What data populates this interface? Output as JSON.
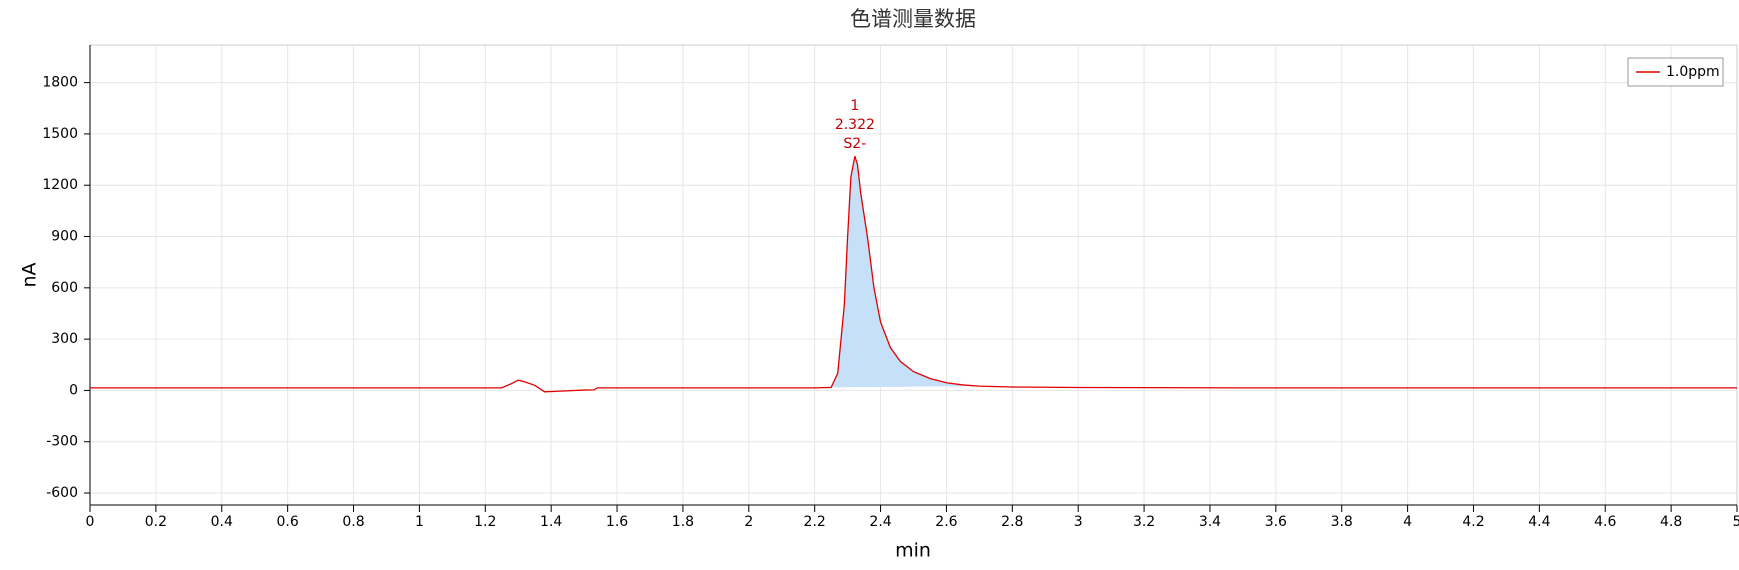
{
  "chart_data": {
    "type": "line",
    "title": "色谱测量数据",
    "x_label": "min",
    "y_label": "nA",
    "x": [
      0,
      1.25,
      1.28,
      1.3,
      1.32,
      1.35,
      1.38,
      1.42,
      1.5,
      1.53,
      1.54,
      2.2,
      2.25,
      2.27,
      2.29,
      2.3,
      2.31,
      2.322,
      2.33,
      2.34,
      2.36,
      2.38,
      2.4,
      2.43,
      2.46,
      2.5,
      2.55,
      2.6,
      2.65,
      2.7,
      2.8,
      3,
      3.5,
      4,
      5
    ],
    "series": [
      {
        "name": "1.0ppm",
        "color": "#e00000",
        "values": [
          15,
          15,
          40,
          60,
          50,
          30,
          -8,
          -5,
          2,
          3,
          15,
          15,
          18,
          100,
          500,
          900,
          1250,
          1370,
          1320,
          1150,
          900,
          600,
          400,
          250,
          170,
          110,
          70,
          45,
          32,
          25,
          20,
          17,
          15,
          15,
          15
        ]
      }
    ],
    "peak_area": {
      "start": 2.22,
      "end": 2.72,
      "color": "#c5e0f8"
    },
    "peak_label": {
      "x": 2.322,
      "y": 1370,
      "color": "#c00000",
      "lines": [
        "1",
        "2.322",
        "S2-"
      ]
    },
    "xlim": [
      0,
      5
    ],
    "ylim": [
      -670,
      2020
    ],
    "xticks": [
      0,
      0.2,
      0.4,
      0.6,
      0.8,
      1,
      1.2,
      1.4,
      1.6,
      1.8,
      2,
      2.2,
      2.4,
      2.6,
      2.8,
      3,
      3.2,
      3.4,
      3.6,
      3.8,
      4,
      4.2,
      4.4,
      4.6,
      4.8,
      5
    ],
    "yticks": [
      -600,
      -300,
      0,
      300,
      600,
      900,
      1200,
      1500,
      1800
    ],
    "grid": true,
    "legend": "upper right"
  }
}
